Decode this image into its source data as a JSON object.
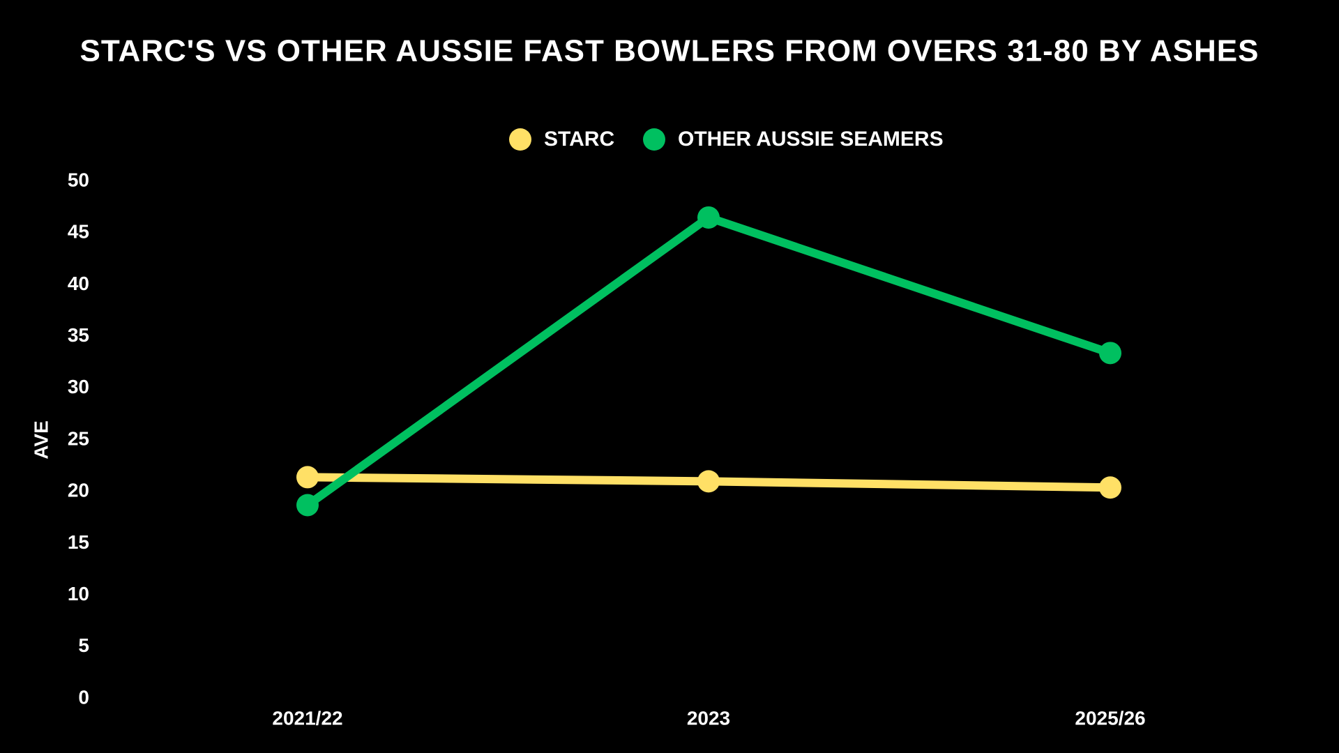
{
  "chart_data": {
    "type": "line",
    "title": "STARC'S VS OTHER AUSSIE FAST BOWLERS FROM OVERS 31-80 BY ASHES",
    "ylabel": "AVE",
    "categories": [
      "2021/22",
      "2023",
      "2025/26"
    ],
    "series": [
      {
        "name": "STARC",
        "color": "#ffe066",
        "values": [
          21.4,
          21.0,
          20.4
        ]
      },
      {
        "name": "OTHER AUSSIE SEAMERS",
        "color": "#00c060",
        "values": [
          18.7,
          46.5,
          33.4
        ]
      }
    ],
    "ylim": [
      0,
      50
    ],
    "yticks": [
      0,
      5,
      10,
      15,
      20,
      25,
      30,
      35,
      40,
      45,
      50
    ],
    "grid": false,
    "legend": "top"
  }
}
